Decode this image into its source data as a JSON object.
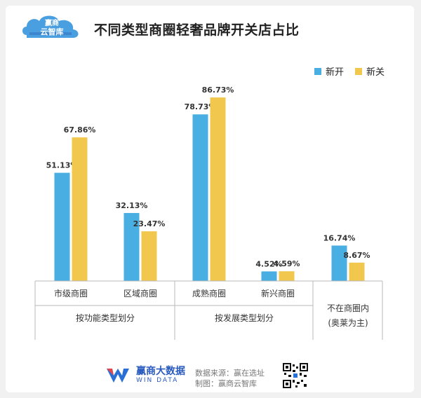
{
  "header": {
    "logo_text_top": "赢商",
    "logo_text_bottom": "云智库",
    "title": "不同类型商圈轻奢品牌开关店占比"
  },
  "colors": {
    "open": "#49aee1",
    "close": "#f1c84d",
    "axis": "#b8b8b8",
    "text": "#333333"
  },
  "chart_data": {
    "type": "bar",
    "categories": [
      "市级商圈",
      "区域商圈",
      "成熟商圈",
      "新兴商圈",
      "不在商圈内\n(奥莱为主)"
    ],
    "groups": [
      {
        "label": "按功能类型划分",
        "categories": [
          "市级商圈",
          "区域商圈"
        ]
      },
      {
        "label": "按发展类型划分",
        "categories": [
          "成熟商圈",
          "新兴商圈"
        ]
      },
      {
        "label": "",
        "categories": [
          "不在商圈内\n(奥莱为主)"
        ]
      }
    ],
    "series": [
      {
        "name": "新开",
        "values": [
          51.13,
          32.13,
          78.73,
          4.52,
          16.74
        ],
        "labels": [
          "51.13%",
          "32.13%",
          "78.73%",
          "4.52%",
          "16.74%"
        ]
      },
      {
        "name": "新关",
        "values": [
          67.86,
          23.47,
          86.73,
          4.59,
          8.67
        ],
        "labels": [
          "67.86%",
          "23.47%",
          "86.73%",
          "4.59%",
          "8.67%"
        ]
      }
    ],
    "ylim": [
      0,
      100
    ],
    "legend_position": "top-right",
    "grid": false,
    "xlabel": "",
    "ylabel": ""
  },
  "footer": {
    "brand_cn": "赢商大数据",
    "brand_en": "WIN DATA",
    "source_line": "数据来源：赢在选址",
    "made_line": "制图：赢商云智库"
  }
}
